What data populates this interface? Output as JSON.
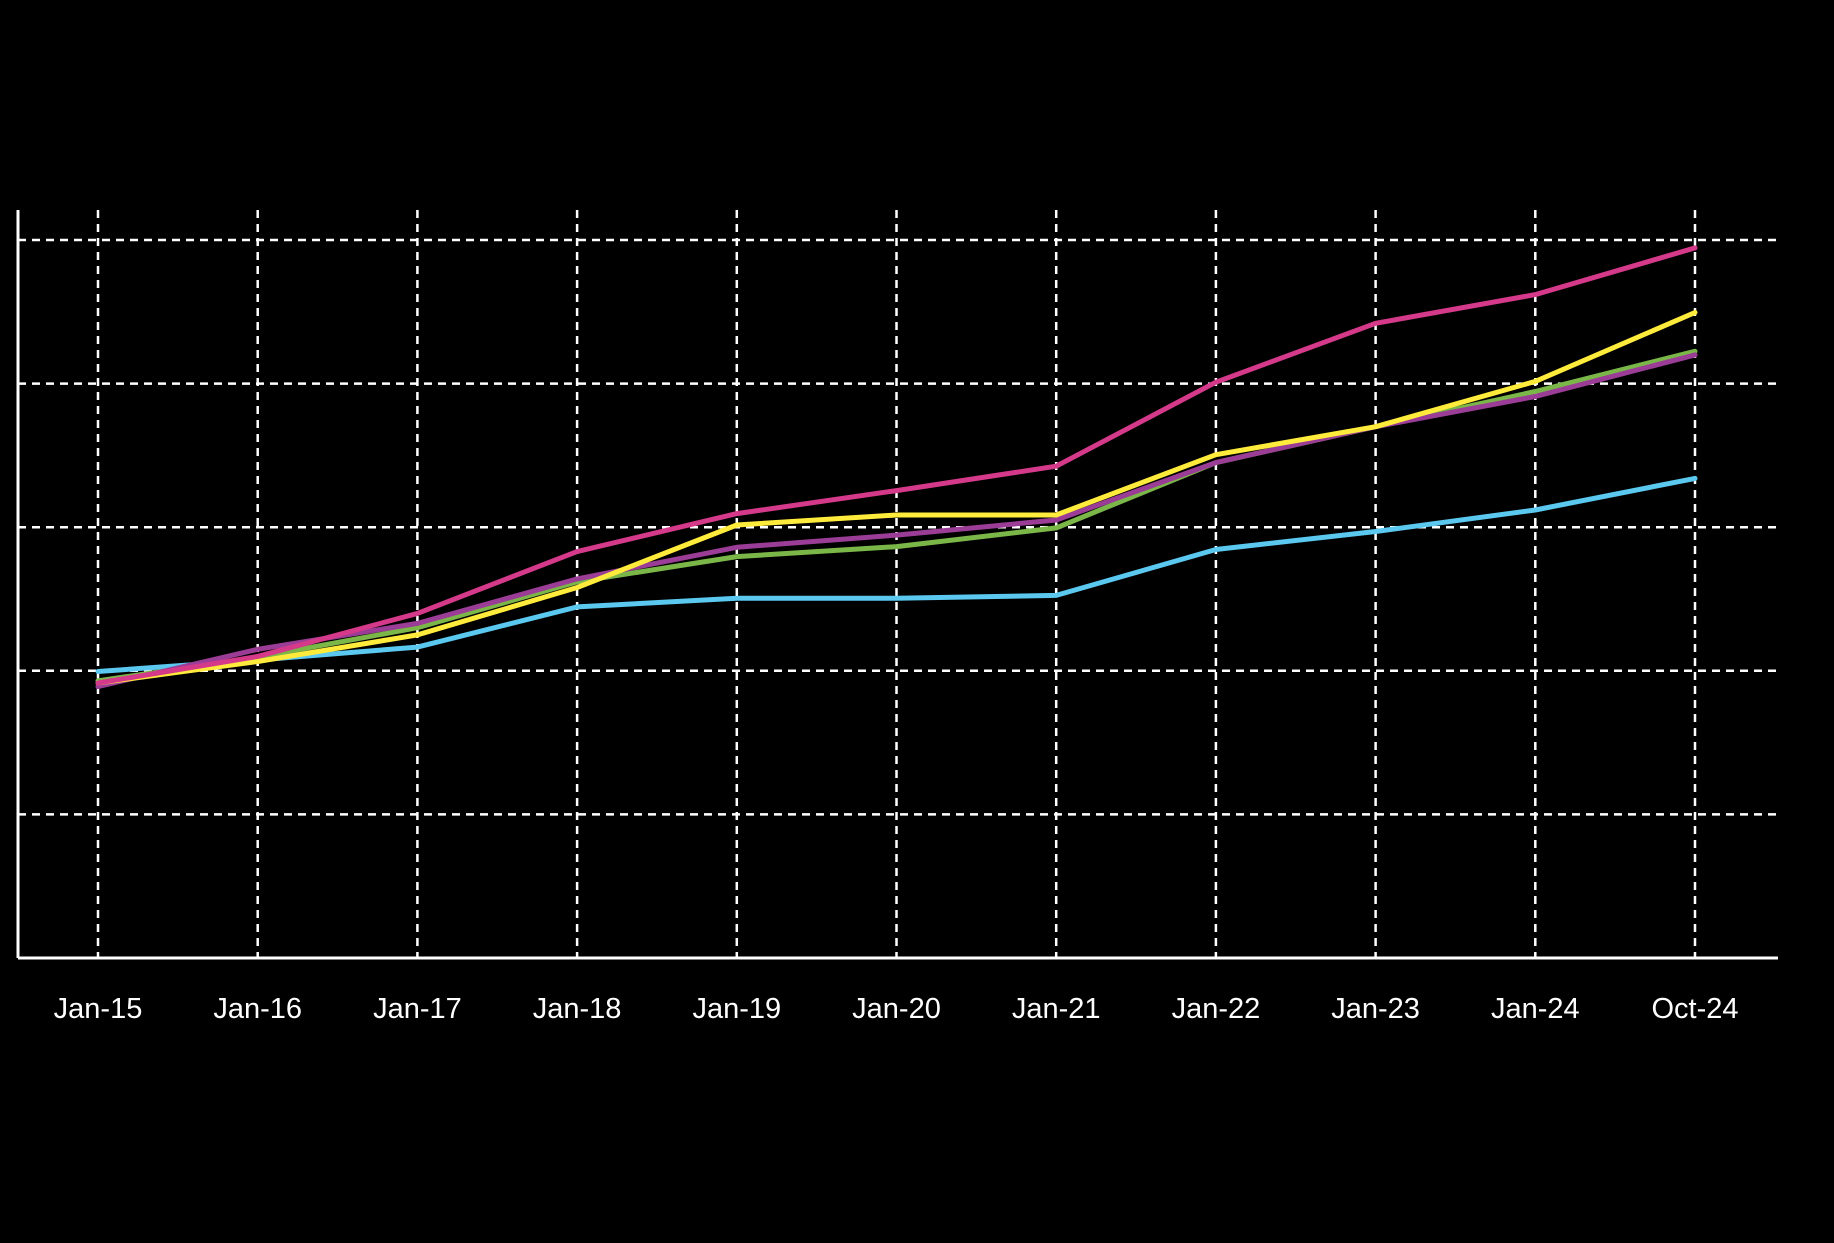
{
  "chart_data": {
    "type": "line",
    "title": "",
    "xlabel": "",
    "ylabel": "",
    "categories": [
      "Jan-15",
      "Jan-16",
      "Jan-17",
      "Jan-18",
      "Jan-19",
      "Jan-20",
      "Jan-21",
      "Jan-22",
      "Jan-23",
      "Jan-24",
      "Oct-24"
    ],
    "ylim": [
      0,
      100
    ],
    "grid": {
      "horizontal": true,
      "vertical": true,
      "style": "dashed"
    },
    "legend": "none",
    "series": [
      {
        "color": "#5bc8f0",
        "values": [
          39.9,
          41.5,
          43.3,
          48.9,
          50.1,
          50.1,
          50.5,
          56.9,
          59.4,
          62.4,
          66.8
        ]
      },
      {
        "color": "#7ab648",
        "values": [
          38.6,
          41.9,
          46.0,
          52.4,
          55.9,
          57.3,
          59.9,
          69.0,
          74.0,
          78.9,
          84.5
        ]
      },
      {
        "color": "#9b3d96",
        "values": [
          37.8,
          43.0,
          46.6,
          52.8,
          57.2,
          58.9,
          61.0,
          69.0,
          74.0,
          78.2,
          84.0
        ]
      },
      {
        "color": "#ffeb3b",
        "values": [
          38.3,
          41.3,
          45.0,
          51.6,
          60.3,
          61.7,
          61.7,
          70.1,
          74.0,
          80.3,
          89.9
        ]
      },
      {
        "color": "#d5398a",
        "values": [
          38.3,
          42.0,
          48.0,
          56.6,
          61.9,
          65.1,
          68.5,
          80.2,
          88.4,
          92.4,
          98.9
        ]
      }
    ]
  }
}
